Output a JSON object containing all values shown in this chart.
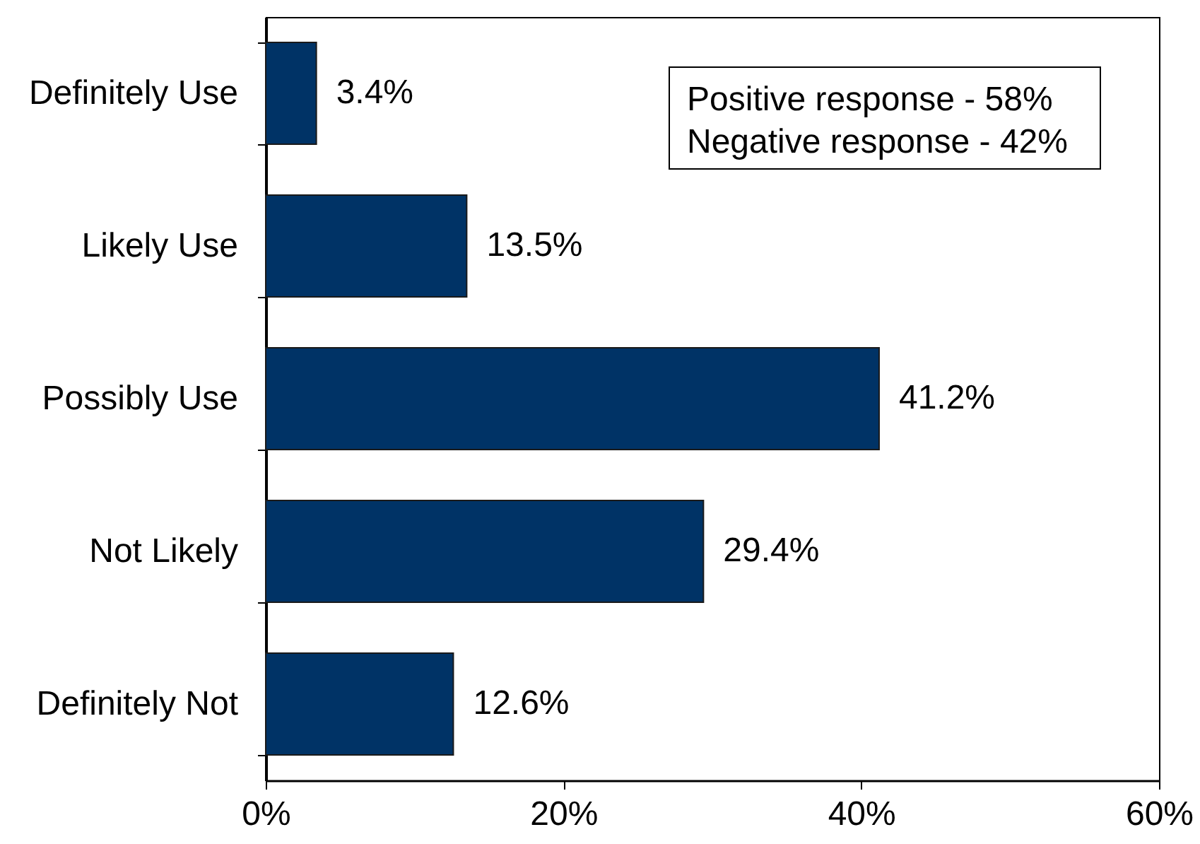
{
  "chart_data": {
    "type": "bar",
    "orientation": "horizontal",
    "categories": [
      "Definitely Use",
      "Likely Use",
      "Possibly Use",
      "Not Likely",
      "Definitely Not"
    ],
    "values": [
      3.4,
      13.5,
      41.2,
      29.4,
      12.6
    ],
    "value_labels": [
      "3.4%",
      "13.5%",
      "41.2%",
      "29.4%",
      "12.6%"
    ],
    "color": "#003366",
    "xlim": [
      0,
      60
    ],
    "xticks": [
      {
        "value": 0,
        "label": "0%"
      },
      {
        "value": 20,
        "label": "20%"
      },
      {
        "value": 40,
        "label": "40%"
      },
      {
        "value": 60,
        "label": "60%"
      }
    ],
    "annotations": [
      "Positive response - 58%",
      "Negative response - 42%"
    ]
  }
}
